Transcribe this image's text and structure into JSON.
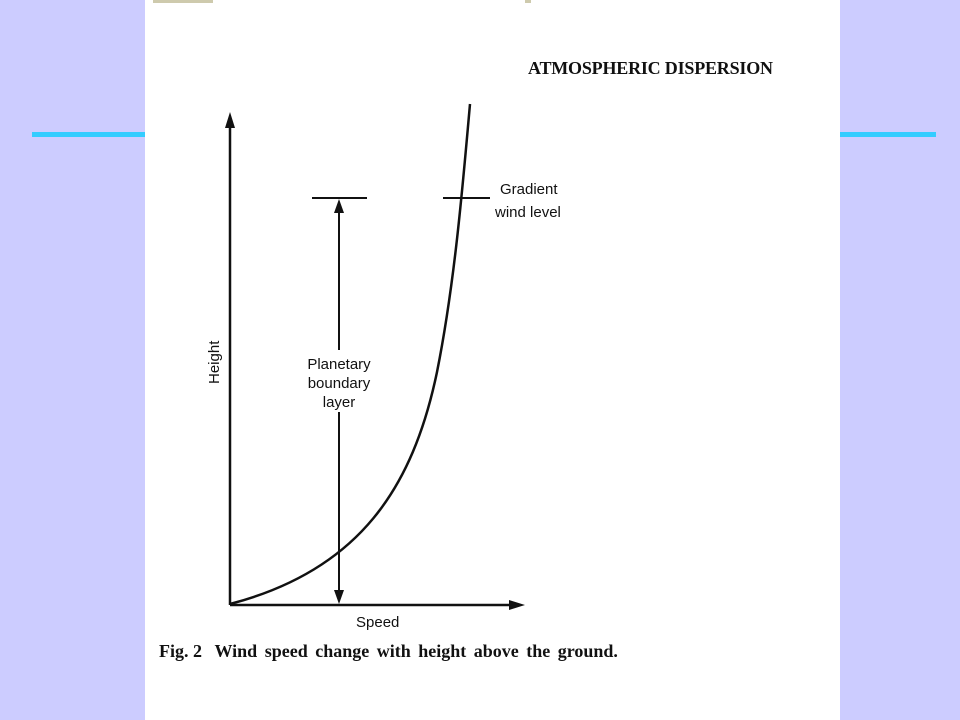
{
  "page": {
    "header_title": "ATMOSPHERIC DISPERSION",
    "colors": {
      "background": "#ccccff",
      "accent_line": "#33ccff",
      "page": "#ffffff",
      "ink": "#111111"
    }
  },
  "diagram": {
    "axis_labels": {
      "y": "Height",
      "x": "Speed"
    },
    "annotations": {
      "gradient_line1": "Gradient",
      "gradient_line2": "wind level",
      "pbl_line1": "Planetary",
      "pbl_line2": "boundary",
      "pbl_line3": "layer"
    }
  },
  "caption": {
    "label": "Fig. 2",
    "text": "Wind speed change with height above the ground."
  }
}
